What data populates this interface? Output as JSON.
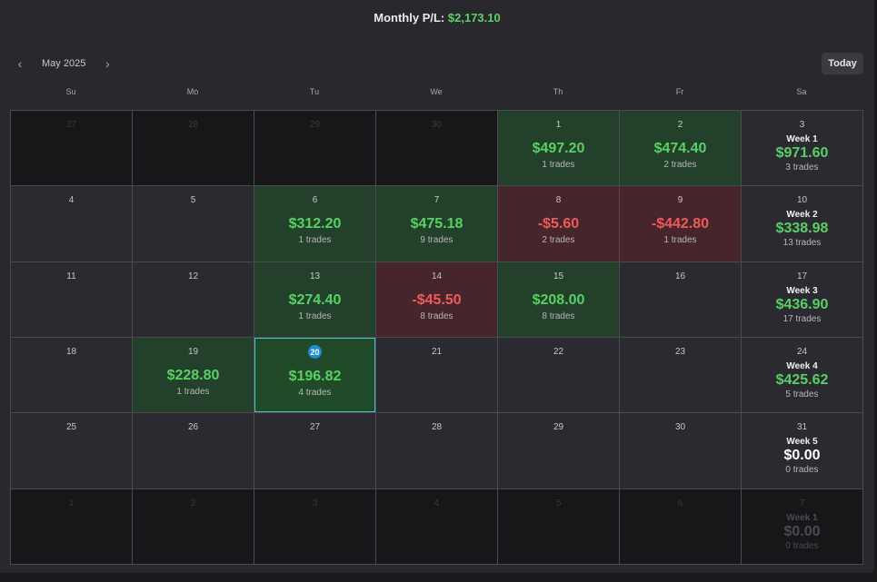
{
  "header": {
    "label": "Monthly P/L:",
    "value": "$2,173.10"
  },
  "nav": {
    "prev_icon": "‹",
    "month": "May 2025",
    "next_icon": "›"
  },
  "today_button": "Today",
  "weekdays": [
    "Su",
    "Mo",
    "Tu",
    "We",
    "Th",
    "Fr",
    "Sa"
  ],
  "colors": {
    "profit": "#58d065",
    "loss": "#ef5a5a",
    "today_badge": "#1b8fd6"
  },
  "days": [
    {
      "day": "27",
      "other": true
    },
    {
      "day": "28",
      "other": true
    },
    {
      "day": "29",
      "other": true
    },
    {
      "day": "30",
      "other": true
    },
    {
      "day": "1",
      "pl": "$497.20",
      "trades": "1 trades",
      "type": "profit"
    },
    {
      "day": "2",
      "pl": "$474.40",
      "trades": "2 trades",
      "type": "profit"
    },
    {
      "day": "3",
      "week": {
        "label": "Week 1",
        "pl": "$971.60",
        "trades": "3 trades",
        "type": "pos"
      }
    },
    {
      "day": "4"
    },
    {
      "day": "5"
    },
    {
      "day": "6",
      "pl": "$312.20",
      "trades": "1 trades",
      "type": "profit"
    },
    {
      "day": "7",
      "pl": "$475.18",
      "trades": "9 trades",
      "type": "profit"
    },
    {
      "day": "8",
      "pl": "-$5.60",
      "trades": "2 trades",
      "type": "loss"
    },
    {
      "day": "9",
      "pl": "-$442.80",
      "trades": "1 trades",
      "type": "loss"
    },
    {
      "day": "10",
      "week": {
        "label": "Week 2",
        "pl": "$338.98",
        "trades": "13 trades",
        "type": "pos"
      }
    },
    {
      "day": "11"
    },
    {
      "day": "12"
    },
    {
      "day": "13",
      "pl": "$274.40",
      "trades": "1 trades",
      "type": "profit"
    },
    {
      "day": "14",
      "pl": "-$45.50",
      "trades": "8 trades",
      "type": "loss"
    },
    {
      "day": "15",
      "pl": "$208.00",
      "trades": "8 trades",
      "type": "profit"
    },
    {
      "day": "16"
    },
    {
      "day": "17",
      "week": {
        "label": "Week 3",
        "pl": "$436.90",
        "trades": "17 trades",
        "type": "pos"
      }
    },
    {
      "day": "18"
    },
    {
      "day": "19",
      "pl": "$228.80",
      "trades": "1 trades",
      "type": "profit"
    },
    {
      "day": "20",
      "pl": "$196.82",
      "trades": "4 trades",
      "type": "profit",
      "today": true
    },
    {
      "day": "21"
    },
    {
      "day": "22"
    },
    {
      "day": "23"
    },
    {
      "day": "24",
      "week": {
        "label": "Week 4",
        "pl": "$425.62",
        "trades": "5 trades",
        "type": "pos"
      }
    },
    {
      "day": "25"
    },
    {
      "day": "26"
    },
    {
      "day": "27"
    },
    {
      "day": "28"
    },
    {
      "day": "29"
    },
    {
      "day": "30"
    },
    {
      "day": "31",
      "week": {
        "label": "Week 5",
        "pl": "$0.00",
        "trades": "0 trades",
        "type": "zero"
      }
    },
    {
      "day": "1",
      "other": true
    },
    {
      "day": "2",
      "other": true
    },
    {
      "day": "3",
      "other": true
    },
    {
      "day": "4",
      "other": true
    },
    {
      "day": "5",
      "other": true
    },
    {
      "day": "6",
      "other": true
    },
    {
      "day": "7",
      "other": true,
      "week": {
        "label": "Week 1",
        "pl": "$0.00",
        "trades": "0 trades",
        "type": "zero"
      }
    }
  ]
}
